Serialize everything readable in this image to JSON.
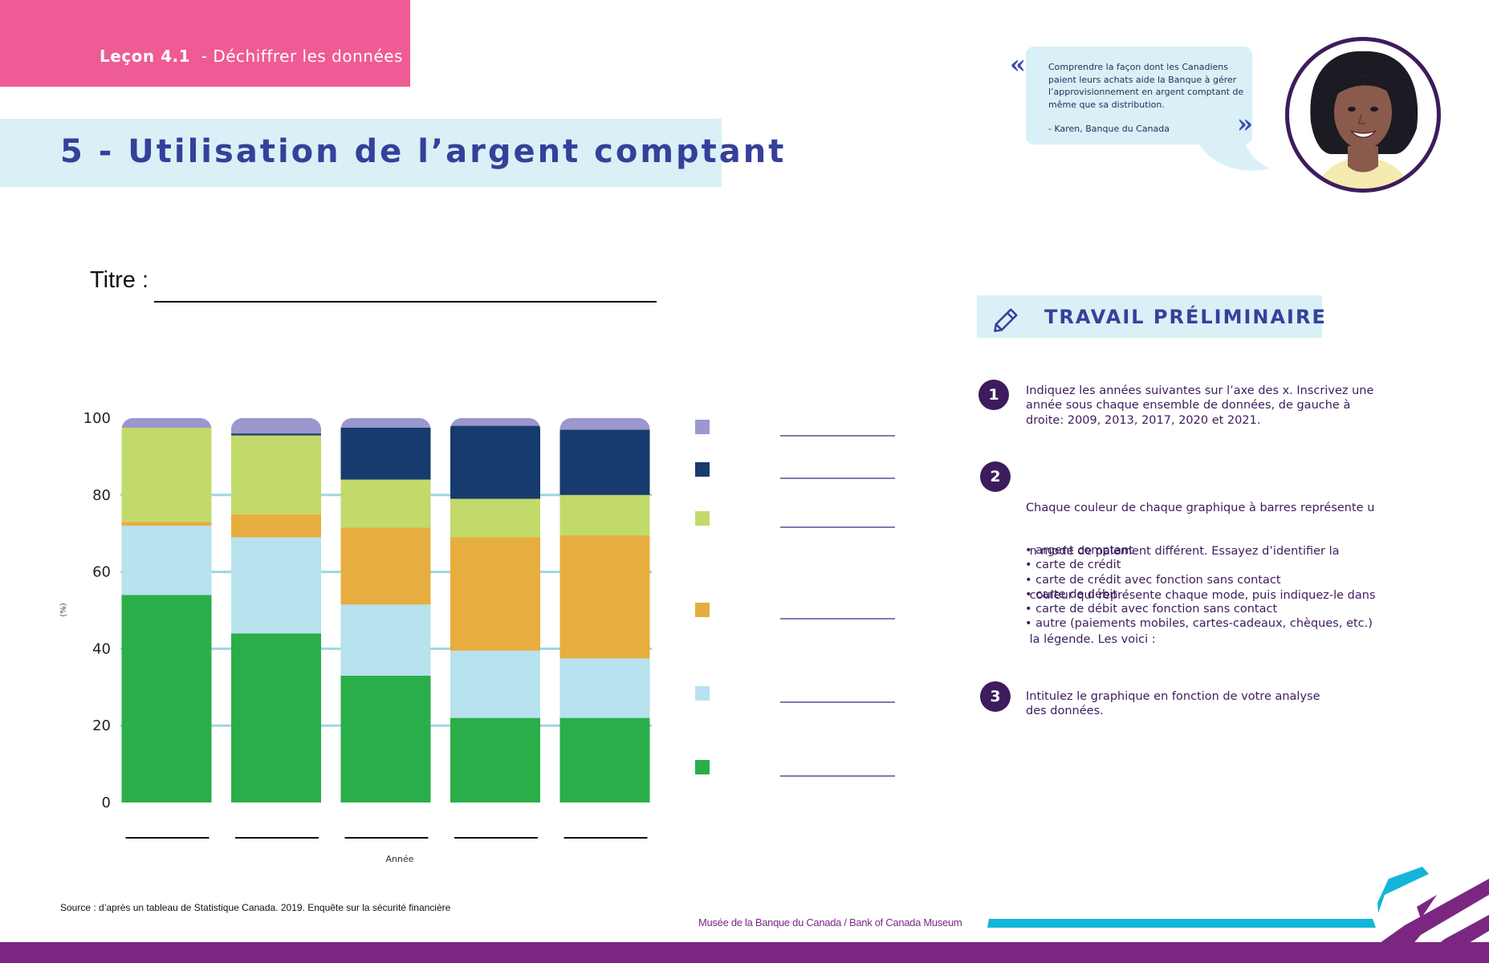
{
  "header": {
    "lesson_number": "Leçon 4.1",
    "lesson_subtitle": "- Déchiffrer les données",
    "page_title": "5 - Utilisation de l’argent comptant"
  },
  "quote": {
    "text": "Comprendre la façon dont les Canadiens paient leurs achats aide la Banque à gérer l’approvisionnement en argent comptant de même que sa distribution.",
    "author": "-      Karen, Banque du Canada",
    "open_mark": "«",
    "close_mark": "»"
  },
  "worksheet": {
    "titre_label": "Titre :"
  },
  "chart_data": {
    "type": "bar",
    "stacked": true,
    "title": "",
    "xlabel": "Année",
    "ylabel": "(%)",
    "ylim": [
      0,
      100
    ],
    "yticks": [
      0,
      20,
      40,
      60,
      80,
      100
    ],
    "categories": [
      "",
      "",
      "",
      "",
      ""
    ],
    "series": [
      {
        "name": "",
        "color": "#2aae4a",
        "values": [
          54,
          44,
          33,
          22,
          22
        ]
      },
      {
        "name": "",
        "color": "#b7e2ee",
        "values": [
          18,
          25,
          18.5,
          17.5,
          15.5
        ]
      },
      {
        "name": "",
        "color": "#e7ad3f",
        "values": [
          1,
          6,
          20,
          29.5,
          32
        ]
      },
      {
        "name": "",
        "color": "#c2da6a",
        "values": [
          24.5,
          20.5,
          12.5,
          10,
          10.5
        ]
      },
      {
        "name": "",
        "color": "#173b6e",
        "values": [
          0,
          0.5,
          13.5,
          19,
          17
        ]
      },
      {
        "name": "",
        "color": "#9a98cf",
        "values": [
          2.5,
          4,
          2.5,
          2,
          3
        ]
      }
    ],
    "legend_order": [
      5,
      4,
      3,
      2,
      1,
      0
    ],
    "legend_position": "right",
    "grid": true
  },
  "preliminary": {
    "heading": "TRAVAIL PRÉLIMINAIRE",
    "steps": [
      {
        "number": "1",
        "lines": [
          "Indiquez les années suivantes sur l’axe des x. Inscrivez une",
          "année sous chaque ensemble de données, de gauche à",
          "droite: 2009, 2013, 2017, 2020 et 2021."
        ]
      },
      {
        "number": "2",
        "lines": [
          "Chaque couleur de chaque graphique à barres représente u",
          " n mode de paiement différent. Essayez d’identifier la",
          " couleur qui représente chaque mode, puis indiquez-le dans",
          " la légende. Les voici :"
        ],
        "bullets": [
          "• argent comptant",
          "• carte de crédit",
          "• carte de crédit avec fonction sans contact",
          "• carte de débit",
          "• carte de débit avec fonction sans contact",
          "• autre (paiements mobiles, cartes-cadeaux, chèques, etc.)"
        ]
      },
      {
        "number": "3",
        "lines": [
          "Intitulez le graphique en fonction de votre analyse",
          "des données."
        ]
      }
    ]
  },
  "footer": {
    "source": "Source : d’après un tableau de Statistique Canada. 2019. Enquête sur la sécurité financière",
    "museum": "Musée de la Banque du Canada  /  Bank of Canada Museum"
  }
}
